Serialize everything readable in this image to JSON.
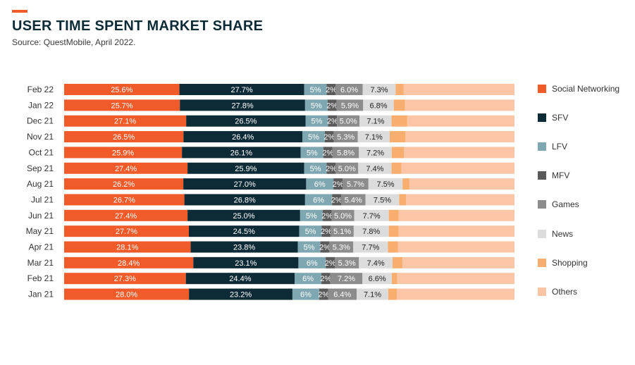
{
  "header": {
    "title": "USER TIME SPENT MARKET SHARE",
    "subtitle": "Source: QuestMobile, April 2022."
  },
  "colors": {
    "accent": "#f15a29",
    "Social Networking": "#f15a29",
    "SFV": "#0d2b36",
    "LFV": "#7fa7b1",
    "MFV": "#5b5b5b",
    "Games": "#8c8c8c",
    "News": "#dcdcdc",
    "Shopping": "#f7ae6e",
    "Others": "#fcc6a6"
  },
  "chart_data": {
    "type": "bar",
    "orientation": "horizontal-stacked-100",
    "title": "USER TIME SPENT MARKET SHARE",
    "xlim": [
      0,
      100
    ],
    "legend_position": "right",
    "categories": [
      "Feb 22",
      "Jan 22",
      "Dec 21",
      "Nov 21",
      "Oct 21",
      "Sep 21",
      "Aug 21",
      "Jul 21",
      "Jun 21",
      "May 21",
      "Apr 21",
      "Mar 21",
      "Feb 21",
      "Jan 21"
    ],
    "series": [
      {
        "name": "Social Networking",
        "values": [
          25.6,
          25.7,
          27.1,
          26.5,
          25.9,
          27.4,
          26.2,
          26.7,
          27.4,
          27.7,
          28.1,
          28.4,
          27.3,
          28.0
        ],
        "labels": [
          "25.6%",
          "25.7%",
          "27.1%",
          "26.5%",
          "25.9%",
          "27.4%",
          "26.2%",
          "26.7%",
          "27.4%",
          "27.7%",
          "28.1%",
          "28.4%",
          "27.3%",
          "28.0%"
        ]
      },
      {
        "name": "SFV",
        "values": [
          27.7,
          27.8,
          26.5,
          26.4,
          26.1,
          25.9,
          27.0,
          26.8,
          25.0,
          24.5,
          23.8,
          23.1,
          24.4,
          23.2
        ],
        "labels": [
          "27.7%",
          "27.8%",
          "26.5%",
          "26.4%",
          "26.1%",
          "25.9%",
          "27.0%",
          "26.8%",
          "25.0%",
          "24.5%",
          "23.8%",
          "23.1%",
          "24.4%",
          "23.2%"
        ]
      },
      {
        "name": "LFV",
        "values": [
          5,
          5,
          5,
          5,
          5,
          5,
          6,
          6,
          5,
          5,
          5,
          6,
          6,
          6
        ],
        "labels": [
          "5%",
          "5%",
          "5%",
          "5%",
          "5%",
          "5%",
          "6%",
          "6%",
          "5%",
          "5%",
          "5%",
          "6%",
          "6%",
          "6%"
        ]
      },
      {
        "name": "MFV",
        "values": [
          2,
          2,
          2,
          2,
          2,
          2,
          2,
          2,
          2,
          2,
          2,
          2,
          2,
          2
        ],
        "labels": [
          "2%",
          "2%",
          "2%",
          "2%",
          "2%",
          "2%",
          "2%",
          "2%",
          "2%",
          "2%",
          "2%",
          "2%",
          "2%",
          "2%"
        ]
      },
      {
        "name": "Games",
        "values": [
          6.0,
          5.9,
          5.0,
          5.3,
          5.8,
          5.0,
          5.7,
          5.4,
          5.0,
          5.1,
          5.3,
          5.3,
          7.2,
          6.4
        ],
        "labels": [
          "6.0%",
          "5.9%",
          "5.0%",
          "5.3%",
          "5.8%",
          "5.0%",
          "5.7%",
          "5.4%",
          "5.0%",
          "5.1%",
          "5.3%",
          "5.3%",
          "7.2%",
          "6.4%"
        ]
      },
      {
        "name": "News",
        "values": [
          7.3,
          6.8,
          7.1,
          7.1,
          7.2,
          7.4,
          7.5,
          7.5,
          7.7,
          7.8,
          7.7,
          7.4,
          6.6,
          7.1
        ],
        "labels": [
          "7.3%",
          "6.8%",
          "7.1%",
          "7.1%",
          "7.2%",
          "7.4%",
          "7.5%",
          "7.5%",
          "7.7%",
          "7.8%",
          "7.7%",
          "7.4%",
          "6.6%",
          "7.1%"
        ]
      },
      {
        "name": "Shopping",
        "values": [
          1.8,
          2.5,
          3.5,
          3.5,
          2.7,
          2.2,
          1.5,
          1.5,
          2.2,
          2.2,
          2.2,
          2.2,
          1.2,
          1.9
        ],
        "labels": [
          "",
          "",
          "",
          "",
          "",
          "",
          "",
          "",
          "",
          "",
          "",
          "",
          "",
          ""
        ]
      },
      {
        "name": "Others",
        "values": [
          24.6,
          24.3,
          23.8,
          24.2,
          24.3,
          25.1,
          23.1,
          24.1,
          25.7,
          25.7,
          25.9,
          24.6,
          26.3,
          26.4
        ],
        "labels": [
          "",
          "",
          "",
          "",
          "",
          "",
          "",
          "",
          "",
          "",
          "",
          "",
          "",
          ""
        ]
      }
    ]
  }
}
